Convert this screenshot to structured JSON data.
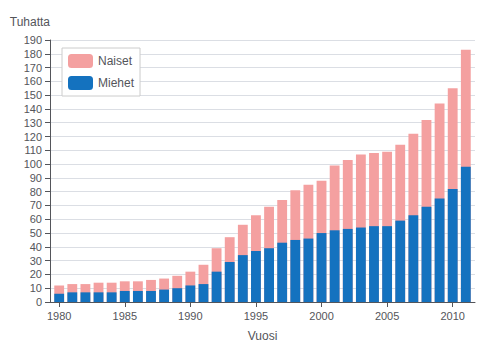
{
  "chart_data": {
    "type": "bar",
    "xlabel": "Vuosi",
    "ylabel": "Tuhatta",
    "x": [
      1980,
      1981,
      1982,
      1983,
      1984,
      1985,
      1986,
      1987,
      1988,
      1989,
      1990,
      1991,
      1992,
      1993,
      1994,
      1995,
      1996,
      1997,
      1998,
      1999,
      2000,
      2001,
      2002,
      2003,
      2004,
      2005,
      2006,
      2007,
      2008,
      2009,
      2010,
      2011
    ],
    "series": [
      {
        "name": "Naiset",
        "color": "#F4A0A0",
        "values": [
          12,
          13,
          13,
          14,
          14,
          15,
          15,
          16,
          17,
          19,
          22,
          27,
          39,
          47,
          56,
          63,
          69,
          74,
          81,
          85,
          88,
          99,
          103,
          107,
          108,
          109,
          114,
          122,
          132,
          144,
          155,
          183
        ]
      },
      {
        "name": "Miehet",
        "color": "#1472BF",
        "values": [
          6,
          7,
          7,
          7,
          7,
          8,
          8,
          8,
          9,
          10,
          12,
          13,
          22,
          29,
          34,
          37,
          39,
          43,
          45,
          46,
          50,
          52,
          53,
          54,
          55,
          55,
          59,
          63,
          69,
          75,
          82,
          98
        ]
      }
    ],
    "xlim": [
      1979.3,
      2011.7
    ],
    "xticks": [
      1980,
      1985,
      1990,
      1995,
      2000,
      2005,
      2010
    ],
    "ylim": [
      0,
      190
    ],
    "yticks": [
      0,
      10,
      20,
      30,
      40,
      50,
      60,
      70,
      80,
      90,
      100,
      110,
      120,
      130,
      140,
      150,
      160,
      170,
      180,
      190
    ],
    "grid": true,
    "legend": "upper left"
  }
}
